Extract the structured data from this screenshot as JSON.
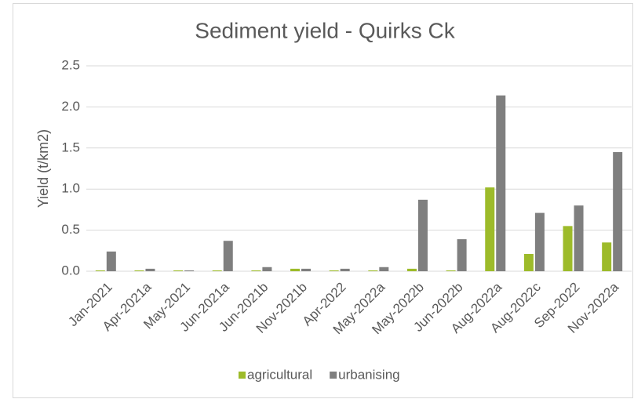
{
  "chart_data": {
    "type": "bar",
    "title": "Sediment yield - Quirks Ck",
    "y_label": "Yield (t/km2)",
    "categories": [
      "Jan-2021",
      "Apr-2021a",
      "May-2021",
      "Jun-2021a",
      "Jun-2021b",
      "Nov-2021b",
      "Apr-2022",
      "May-2022a",
      "May-2022b",
      "Jun-2022b",
      "Aug-2022a",
      "Aug-2022c",
      "Sep-2022",
      "Nov-2022a"
    ],
    "series": [
      {
        "name": "agricultural",
        "color": "#9dbb2a",
        "values": [
          0.01,
          0.01,
          0.01,
          0.01,
          0.01,
          0.03,
          0.01,
          0.01,
          0.03,
          0.01,
          1.02,
          0.21,
          0.55,
          0.35
        ]
      },
      {
        "name": "urbanising",
        "color": "#7f7f7f",
        "values": [
          0.24,
          0.03,
          0.01,
          0.37,
          0.05,
          0.03,
          0.03,
          0.05,
          0.87,
          0.39,
          2.14,
          0.71,
          0.8,
          1.45
        ]
      }
    ],
    "ylim": [
      0,
      2.5
    ],
    "yticks": [
      {
        "value": 0,
        "label": "0.0"
      },
      0.5,
      {
        "value": 1,
        "label": "1.0"
      },
      1.5,
      {
        "value": 2,
        "label": "2.0"
      },
      2.5
    ],
    "grid": true,
    "legend": "bottom"
  }
}
